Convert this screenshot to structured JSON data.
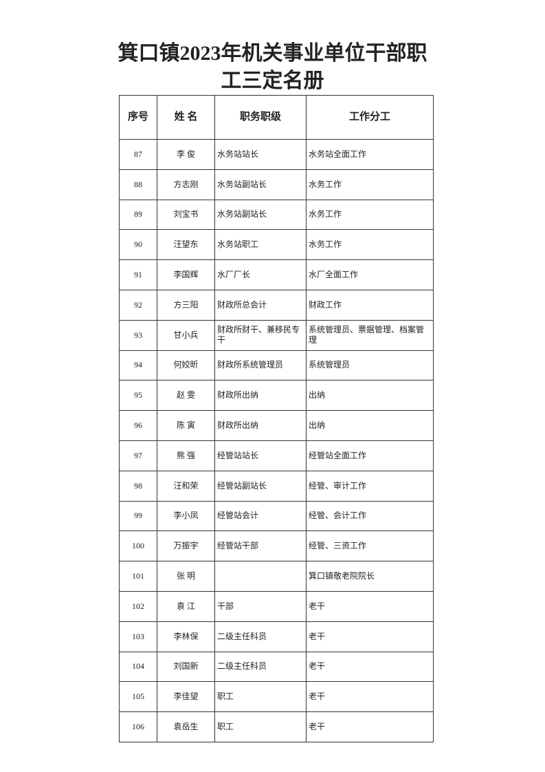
{
  "header": {
    "title": [
      "箕口镇2023年机关事业单位干部职",
      "工三定名册"
    ]
  },
  "table": {
    "columns": [
      "序号",
      "姓  名",
      "职务职级",
      "工作分工"
    ],
    "rows": [
      [
        87,
        "李  俊",
        "水务站站长",
        "水务站全面工作"
      ],
      [
        88,
        "方志刚",
        "水务站副站长",
        "水务工作"
      ],
      [
        89,
        "刘宝书",
        "水务站副站长",
        "水务工作"
      ],
      [
        90,
        "汪望东",
        "水务站职工",
        "水务工作"
      ],
      [
        91,
        "李国辉",
        "水厂厂长",
        "水厂全面工作"
      ],
      [
        92,
        "方三阳",
        "财政所总会计",
        "财政工作"
      ],
      [
        93,
        "甘小兵",
        "财政所财干、兼移民专干",
        "系统管理员、票据管理、档案管理"
      ],
      [
        94,
        "何姣昕",
        "财政所系统管理员",
        "系统管理员"
      ],
      [
        95,
        "赵  雯",
        "财政所出纳",
        "出纳"
      ],
      [
        96,
        "陈  寅",
        "财政所出纳",
        "出纳"
      ],
      [
        97,
        "熊  强",
        "经管站站长",
        "经管站全面工作"
      ],
      [
        98,
        "汪和荣",
        "经管站副站长",
        "经管、审计工作"
      ],
      [
        99,
        "李小凤",
        "经管站会计",
        "经管、会计工作"
      ],
      [
        100,
        "万振宇",
        "经管站干部",
        "经管、三资工作"
      ],
      [
        101,
        "张  明",
        null,
        "箕口镇敬老院院长"
      ],
      [
        102,
        "袁  江",
        "干部",
        "老干"
      ],
      [
        103,
        "李林保",
        "二级主任科员",
        "老干"
      ],
      [
        104,
        "刘国新",
        "二级主任科员",
        "老干"
      ],
      [
        105,
        "李佳望",
        "职工",
        "老干"
      ],
      [
        106,
        "袁岳生",
        "职工",
        "老干"
      ]
    ]
  }
}
